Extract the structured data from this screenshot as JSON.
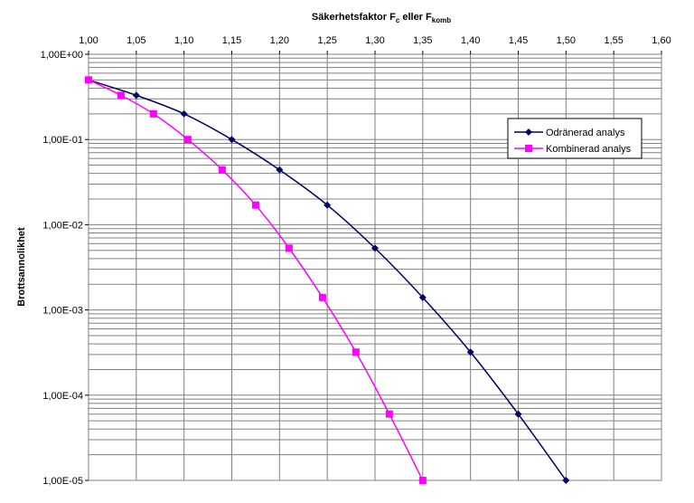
{
  "chart_data": {
    "type": "line",
    "title": "",
    "xlabel": "Säkerhetsfaktor  F",
    "xlabel_sub1": "c",
    "xlabel_mid": " eller F",
    "xlabel_sub2": "komb",
    "ylabel": "Brottsannolikhet",
    "xlim": [
      1.0,
      1.6
    ],
    "ylim": [
      1e-05,
      1
    ],
    "y_scale": "log",
    "x_axis_position": "top",
    "grid": true,
    "legend_position": "right",
    "x_ticks": [
      1.0,
      1.05,
      1.1,
      1.15,
      1.2,
      1.25,
      1.3,
      1.35,
      1.4,
      1.45,
      1.5,
      1.55,
      1.6
    ],
    "x_tick_labels": [
      "1,00",
      "1,05",
      "1,10",
      "1,15",
      "1,20",
      "1,25",
      "1,30",
      "1,35",
      "1,40",
      "1,45",
      "1,50",
      "1,55",
      "1,60"
    ],
    "y_ticks": [
      1,
      0.1,
      0.01,
      0.001,
      0.0001,
      1e-05
    ],
    "y_tick_labels": [
      "1,00E+00",
      "1,00E-01",
      "1,00E-02",
      "1,00E-03",
      "1,00E-04",
      "1,00E-05"
    ],
    "series": [
      {
        "name": "Odränerad analys",
        "color": "#000066",
        "marker": "diamond",
        "x": [
          1.0,
          1.05,
          1.1,
          1.15,
          1.2,
          1.25,
          1.3,
          1.35,
          1.4,
          1.45,
          1.5
        ],
        "y": [
          0.5,
          0.33,
          0.2,
          0.1,
          0.044,
          0.017,
          0.0053,
          0.0014,
          0.00032,
          6e-05,
          1e-05
        ]
      },
      {
        "name": "Kombinerad analys",
        "color": "#FF00FF",
        "marker": "square",
        "x": [
          1.0,
          1.034,
          1.068,
          1.104,
          1.14,
          1.175,
          1.21,
          1.245,
          1.28,
          1.315,
          1.35
        ],
        "y": [
          0.5,
          0.33,
          0.2,
          0.1,
          0.044,
          0.017,
          0.0053,
          0.0014,
          0.00032,
          6e-05,
          1e-05
        ]
      }
    ]
  }
}
